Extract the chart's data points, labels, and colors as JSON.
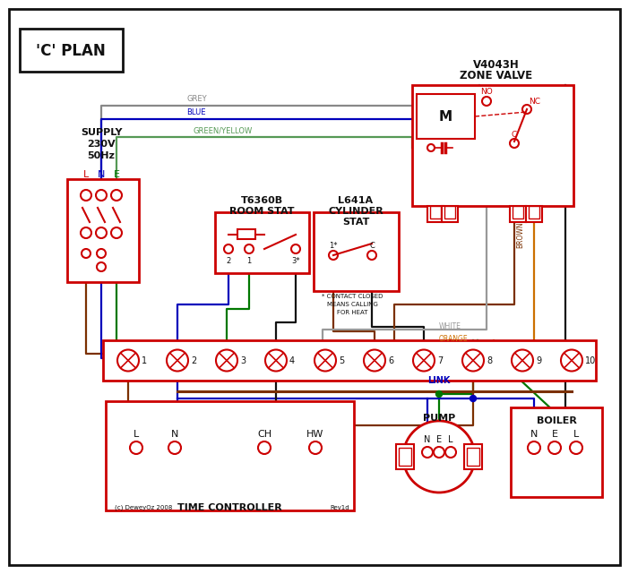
{
  "bg": "#ffffff",
  "red": "#cc0000",
  "blue": "#0000bb",
  "green": "#007700",
  "grey": "#888888",
  "brown": "#7B3000",
  "orange": "#CC7000",
  "black": "#111111",
  "white_w": "#999999",
  "gy": "#559955",
  "lw": 1.6,
  "title": "'C' PLAN",
  "supply_lines": [
    "SUPPLY",
    "230V",
    "50Hz"
  ],
  "lne": [
    "L",
    "N",
    "E"
  ],
  "zone_valve_lines": [
    "V4043H",
    "ZONE VALVE"
  ],
  "room_stat_lines": [
    "T6360B",
    "ROOM STAT"
  ],
  "cyl_stat_lines": [
    "L641A",
    "CYLINDER",
    "STAT"
  ],
  "time_ctrl": "TIME CONTROLLER",
  "pump_lbl": "PUMP",
  "boiler_lbl": "BOILER",
  "link": "LINK",
  "tc_labels": [
    "L",
    "N",
    "CH",
    "HW"
  ],
  "boiler_labels": [
    "N",
    "E",
    "L"
  ],
  "pump_labels": [
    "N",
    "E",
    "L"
  ],
  "grey_lbl": "GREY",
  "blue_lbl": "BLUE",
  "gy_lbl": "GREEN/YELLOW",
  "brown_lbl": "BROWN",
  "white_lbl": "WHITE",
  "orange_lbl": "ORANGE",
  "contact_note": [
    "* CONTACT CLOSED",
    "MEANS CALLING",
    "FOR HEAT"
  ],
  "copyright": "(c) DeweyOz 2008",
  "rev": "Rev1d",
  "no_lbl": "NO",
  "nc_lbl": "NC",
  "c_lbl": "C",
  "m_lbl": "M"
}
